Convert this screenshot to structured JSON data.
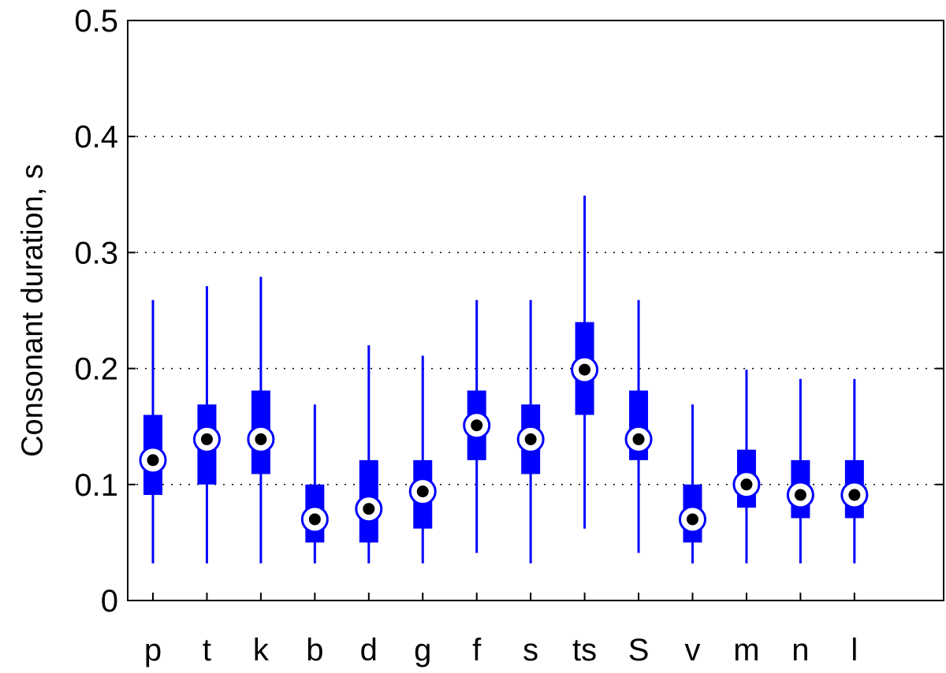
{
  "chart_data": {
    "type": "box",
    "title": "",
    "xlabel": "",
    "ylabel": "Consonant duration, s",
    "ylim": [
      0,
      0.5
    ],
    "yticks": [
      0,
      0.1,
      0.2,
      0.3,
      0.4,
      0.5
    ],
    "ytick_labels": [
      "0",
      "0.1",
      "0.2",
      "0.3",
      "0.4",
      "0.5"
    ],
    "grid": "horizontal dotted",
    "categories": [
      "p",
      "t",
      "k",
      "b",
      "d",
      "g",
      "f",
      "s",
      "ts",
      "S",
      "v",
      "m",
      "n",
      "l"
    ],
    "series": [
      {
        "whisker_low": [
          0.032,
          0.032,
          0.032,
          0.032,
          0.032,
          0.032,
          0.041,
          0.032,
          0.062,
          0.041,
          0.032,
          0.032,
          0.032,
          0.032
        ],
        "q1": [
          0.091,
          0.1,
          0.109,
          0.05,
          0.05,
          0.062,
          0.121,
          0.109,
          0.16,
          0.121,
          0.05,
          0.08,
          0.071,
          0.071
        ],
        "median": [
          0.121,
          0.139,
          0.139,
          0.07,
          0.079,
          0.094,
          0.151,
          0.139,
          0.199,
          0.139,
          0.07,
          0.1,
          0.091,
          0.091
        ],
        "q3": [
          0.16,
          0.169,
          0.181,
          0.1,
          0.121,
          0.121,
          0.181,
          0.169,
          0.24,
          0.181,
          0.1,
          0.13,
          0.121,
          0.121
        ],
        "whisker_high": [
          0.259,
          0.271,
          0.279,
          0.169,
          0.22,
          0.211,
          0.259,
          0.259,
          0.349,
          0.259,
          0.169,
          0.199,
          0.191,
          0.191
        ]
      }
    ],
    "colors": {
      "box": "#0000ff",
      "median_ring": "#0000ff",
      "median_dot": "#000000",
      "grid": "#000000",
      "axis": "#000000"
    }
  }
}
